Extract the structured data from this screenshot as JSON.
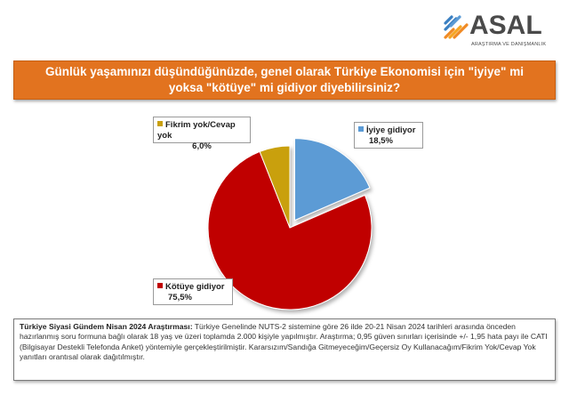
{
  "logo": {
    "name": "ASAL",
    "subtitle": "ARAŞTIRMA VE DANIŞMANLIK"
  },
  "title": "Günlük yaşamınızı düşündüğünüzde, genel olarak Türkiye Ekonomisi için \"iyiye\" mi yoksa \"kötüye\" mi gidiyor diyebilirsiniz?",
  "chart_data": {
    "type": "pie",
    "slices": [
      {
        "label": "İyiye gidiyor",
        "value": 18.5,
        "display": "18,5%",
        "color": "#5b9bd5",
        "exploded": true
      },
      {
        "label": "Kötüye gidiyor",
        "value": 75.5,
        "display": "75,5%",
        "color": "#c00000",
        "exploded": false
      },
      {
        "label": "Fikrim yok/Cevap yok",
        "value": 6.0,
        "display": "6,0%",
        "color": "#c9a00f",
        "exploded": false
      }
    ],
    "start_angle_deg": 0,
    "direction": "clockwise"
  },
  "footer": {
    "heading": "Türkiye Siyasi Gündem Nisan 2024 Araştırması:",
    "text": "Türkiye Genelinde NUTS-2 sistemine göre 26 ilde 20-21 Nisan 2024 tarihleri arasında önceden hazırlanmış soru formuna bağlı olarak 18 yaş ve üzeri toplamda 2.000 kişiyle yapılmıştır. Araştırma; 0,95 güven sınırları içerisinde +/- 1,95 hata payı ile CATI (Bilgisayar Destekli Telefonda Anket) yöntemiyle gerçekleştirilmiştir. Kararsızım/Sandığa Gitmeyeceğim/Geçersiz Oy Kullanacağım/Fikrim Yok/Cevap Yok yanıtları orantısal olarak dağıtılmıştır."
  }
}
